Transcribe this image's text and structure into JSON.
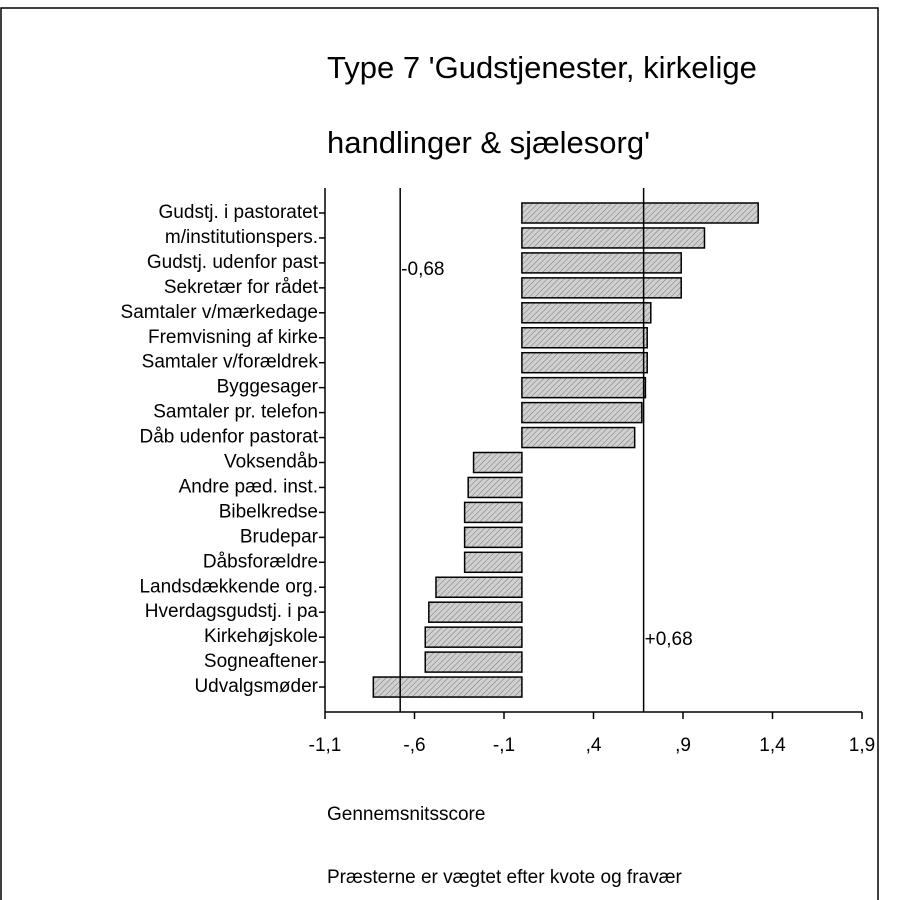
{
  "chart_data": {
    "type": "barh",
    "title": [
      "Type 7 'Gudstjenester, kirkelige",
      "handlinger & sjælesorg'"
    ],
    "categories": [
      "Gudstj. i pastoratet",
      "m/institutionspers.",
      "Gudstj. udenfor past",
      "Sekretær for rådet",
      "Samtaler v/mærkedage",
      "Fremvisning af kirke",
      "Samtaler v/forældrek",
      "Byggesager",
      "Samtaler pr. telefon",
      "Dåb udenfor pastorat",
      "Voksendåb",
      "Andre pæd. inst.",
      "Bibelkredse",
      "Brudepar",
      "Dåbsforældre",
      "Landsdækkende org.",
      "Hverdagsgudstj. i pa",
      "Kirkehøjskole",
      "Sogneaftener",
      "Udvalgsmøder"
    ],
    "values": [
      1.32,
      1.02,
      0.89,
      0.89,
      0.72,
      0.7,
      0.7,
      0.69,
      0.67,
      0.63,
      -0.27,
      -0.3,
      -0.32,
      -0.32,
      -0.32,
      -0.48,
      -0.52,
      -0.54,
      -0.54,
      -0.83
    ],
    "color": "#d0d0d0",
    "xlim": [
      -1.1,
      1.9
    ],
    "xticks": [
      {
        "value": -1.1,
        "label": "-1,1"
      },
      {
        "value": -0.6,
        "label": "-,6"
      },
      {
        "value": -0.1,
        "label": "-,1"
      },
      {
        "value": 0.4,
        "label": ",4"
      },
      {
        "value": 0.9,
        "label": ",9"
      },
      {
        "value": 1.4,
        "label": "1,4"
      },
      {
        "value": 1.9,
        "label": "1,9"
      }
    ],
    "reference_lines": [
      {
        "value": -0.68,
        "label": "-0,68"
      },
      {
        "value": 0.68,
        "label": "+0,68"
      }
    ],
    "xlabel": "Gennemsnitsscore",
    "note": "Præsterne er vægtet efter kvote og fravær"
  }
}
